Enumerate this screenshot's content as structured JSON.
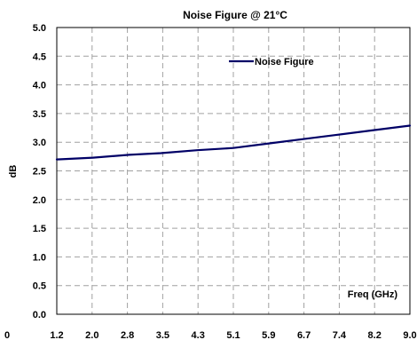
{
  "chart_data": {
    "type": "line",
    "title": "Noise Figure @ 21°C",
    "xlabel": "Freq (GHz)",
    "ylabel": "dB",
    "x_tick_labels": [
      "1.2",
      "2.0",
      "2.8",
      "3.5",
      "4.3",
      "5.1",
      "5.9",
      "6.7",
      "7.4",
      "8.2",
      "9.0"
    ],
    "x_axis_min_label": "0",
    "xlim": [
      1.2,
      9.0
    ],
    "ylim": [
      0.0,
      5.0
    ],
    "y_tick_labels": [
      "0.0",
      "0.5",
      "1.0",
      "1.5",
      "2.0",
      "2.5",
      "3.0",
      "3.5",
      "4.0",
      "4.5",
      "5.0"
    ],
    "y_ticks": [
      0,
      0.5,
      1,
      1.5,
      2,
      2.5,
      3,
      3.5,
      4,
      4.5,
      5
    ],
    "grid": true,
    "legend_position": "top-right",
    "series": [
      {
        "name": "Noise Figure",
        "color": "#000066",
        "x": [
          1.2,
          2.0,
          2.8,
          3.5,
          4.3,
          5.1,
          5.9,
          6.7,
          7.4,
          8.2,
          9.0
        ],
        "y": [
          2.7,
          2.73,
          2.78,
          2.81,
          2.86,
          2.9,
          2.98,
          3.06,
          3.13,
          3.21,
          3.29
        ]
      }
    ]
  }
}
